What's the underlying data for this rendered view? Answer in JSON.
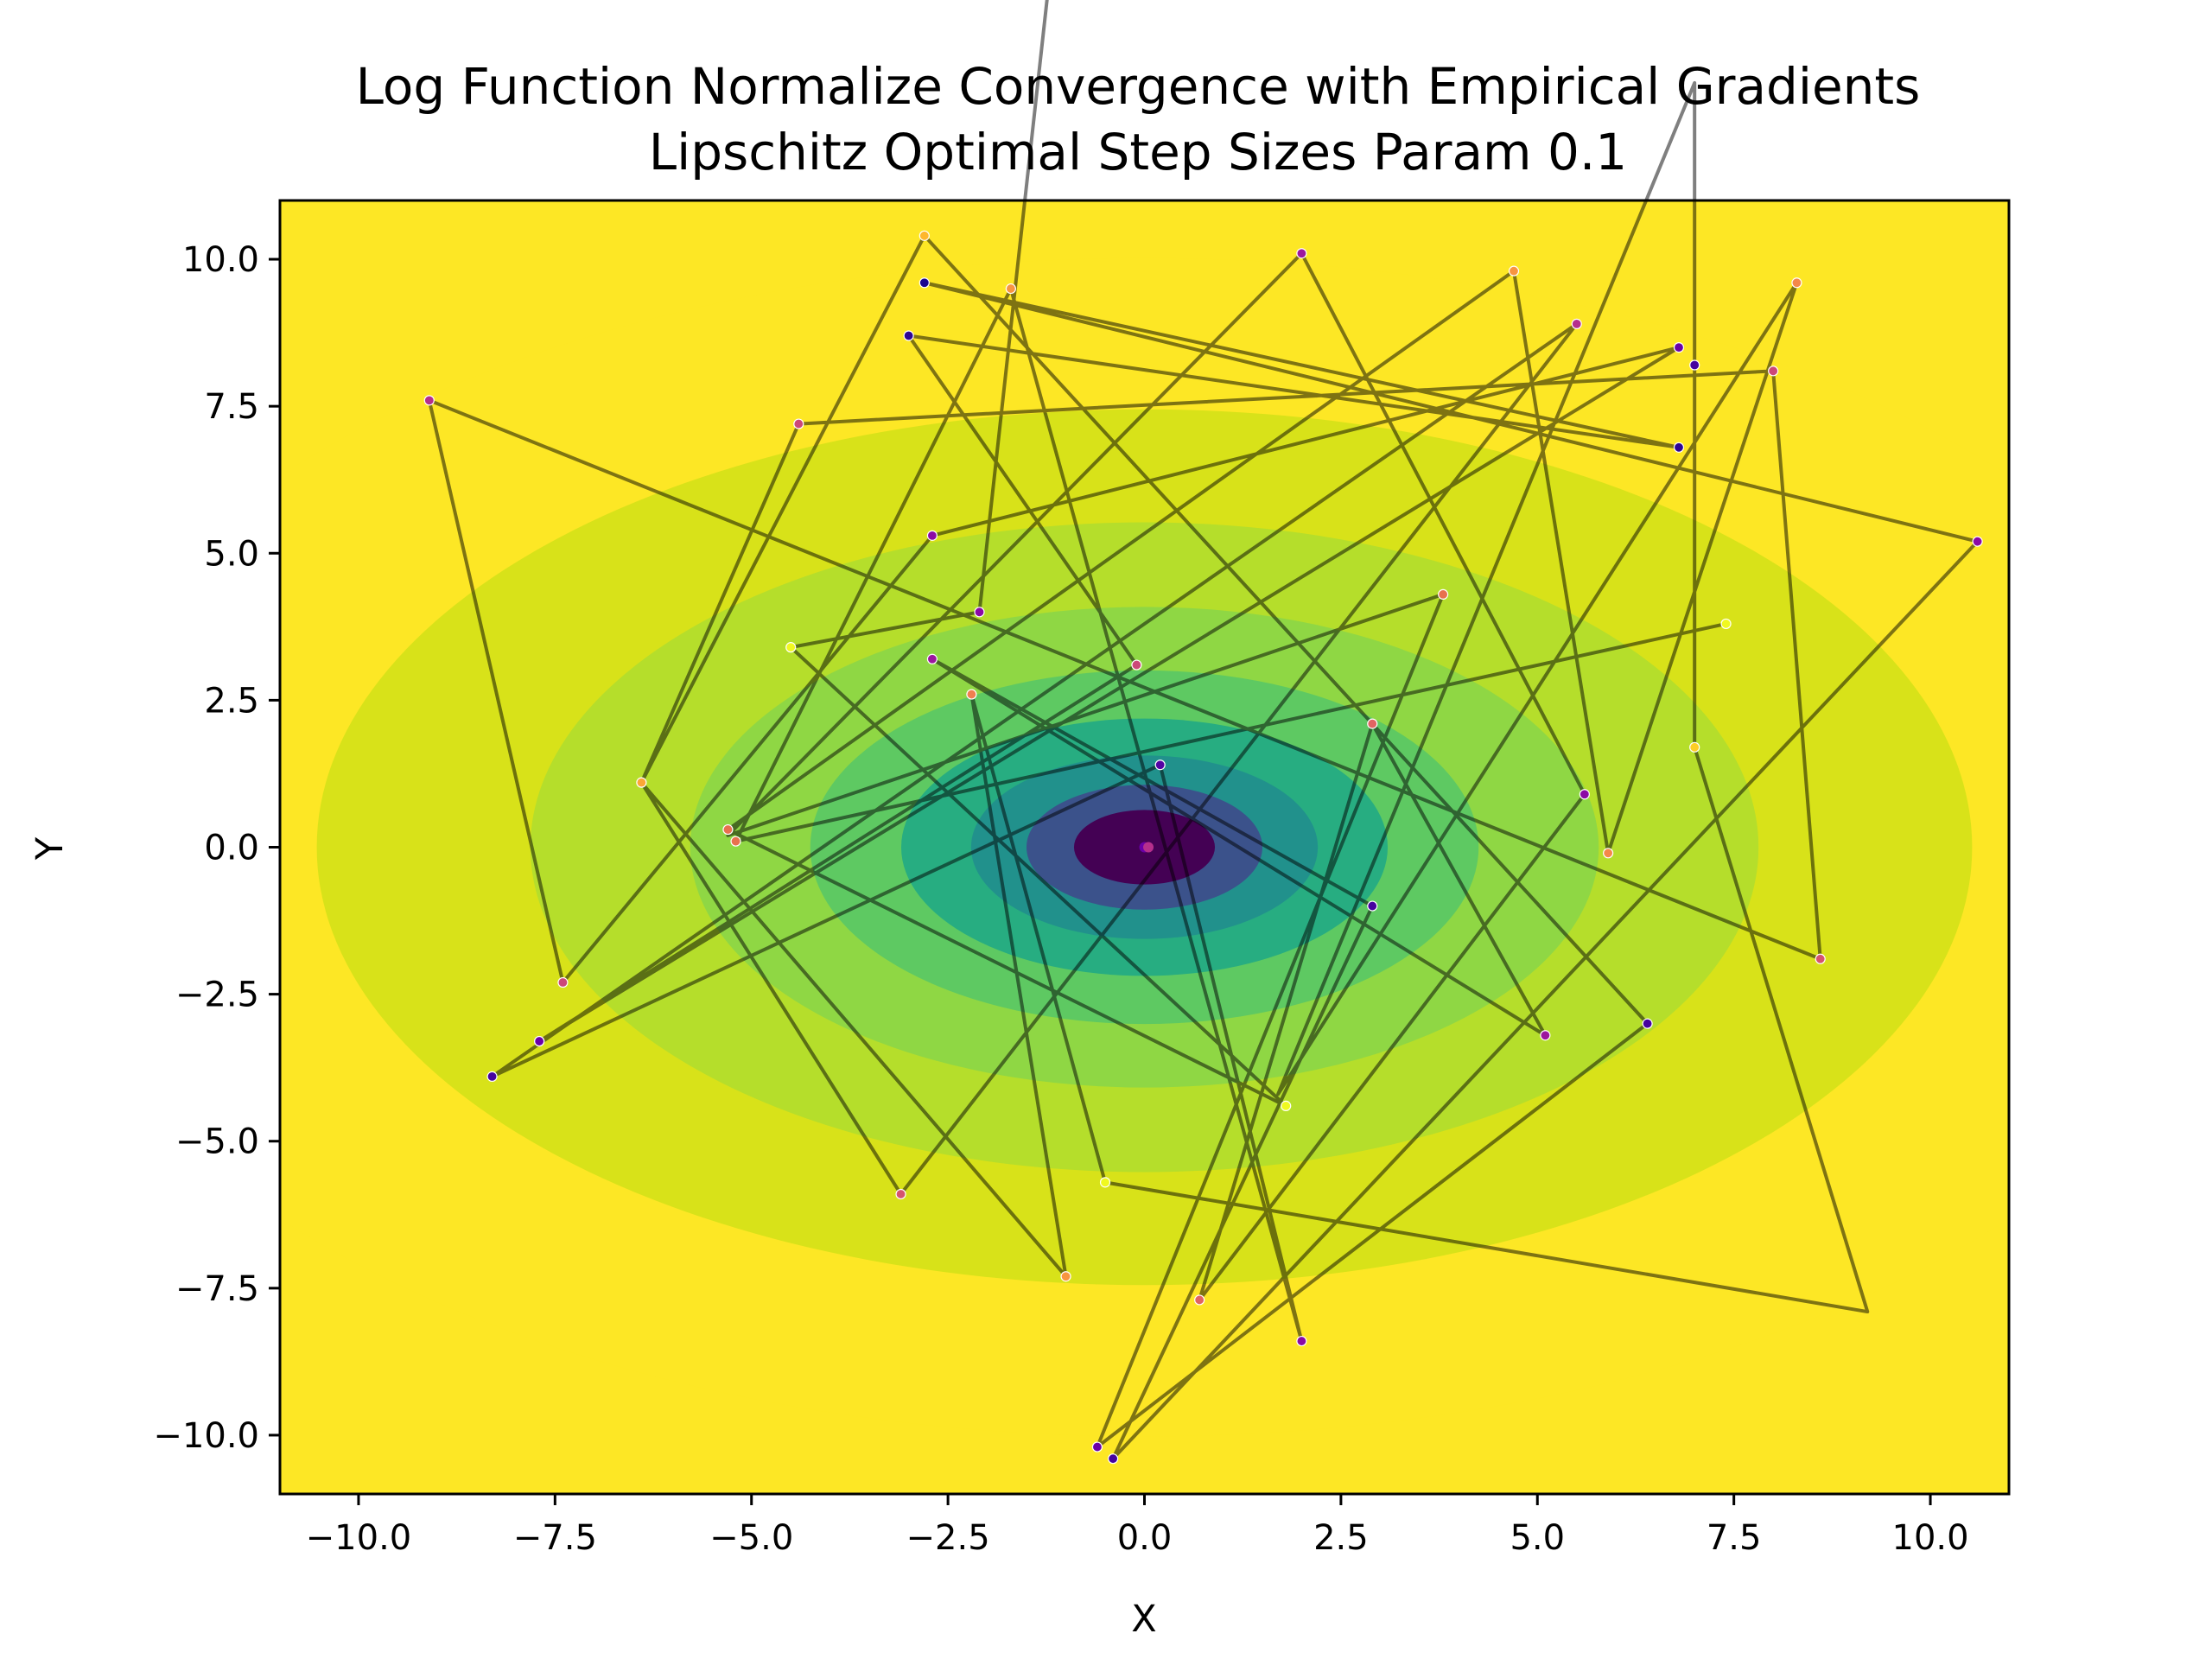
{
  "chart_data": {
    "type": "line",
    "title_lines": [
      "Log Function Normalize Convergence with Empirical Gradients",
      "Lipschitz Optimal Step Sizes Param 0.1"
    ],
    "xlabel": "X",
    "ylabel": "Y",
    "xlim": [
      -11,
      11
    ],
    "ylim": [
      -11,
      11
    ],
    "x_ticks": [
      {
        "value": -10.0,
        "label": "−10.0"
      },
      {
        "value": -7.5,
        "label": "−7.5"
      },
      {
        "value": -5.0,
        "label": "−5.0"
      },
      {
        "value": -2.5,
        "label": "−2.5"
      },
      {
        "value": 0.0,
        "label": "0.0"
      },
      {
        "value": 2.5,
        "label": "2.5"
      },
      {
        "value": 5.0,
        "label": "5.0"
      },
      {
        "value": 7.5,
        "label": "7.5"
      },
      {
        "value": 10.0,
        "label": "10.0"
      }
    ],
    "y_ticks": [
      {
        "value": 10.0,
        "label": "10.0"
      },
      {
        "value": 7.5,
        "label": "7.5"
      },
      {
        "value": 5.0,
        "label": "5.0"
      },
      {
        "value": 2.5,
        "label": "2.5"
      },
      {
        "value": 0.0,
        "label": "0.0"
      },
      {
        "value": -2.5,
        "label": "−2.5"
      },
      {
        "value": -5.0,
        "label": "−5.0"
      },
      {
        "value": -7.5,
        "label": "−7.5"
      },
      {
        "value": -10.0,
        "label": "−10.0"
      }
    ],
    "contour": {
      "function": "log(1 + x^2 + 2*y^2)",
      "center": [
        0,
        0
      ],
      "levels": 10,
      "colormap": [
        "#440154",
        "#3b528b",
        "#21918c",
        "#27ad81",
        "#5ec962",
        "#8fd744",
        "#b5de2b",
        "#d8e219",
        "#fde725"
      ]
    },
    "grid": false,
    "legend": "none",
    "line_color": "#000000",
    "line_alpha": 0.5,
    "path": [
      [
        -0.2,
        27.0
      ],
      [
        -2.1,
        4.0
      ],
      [
        -4.5,
        3.4
      ],
      [
        1.8,
        -4.4
      ],
      [
        -5.3,
        0.3
      ],
      [
        4.7,
        9.8
      ],
      [
        5.9,
        -0.1
      ],
      [
        8.3,
        9.6
      ],
      [
        1.7,
        -4.2
      ],
      [
        7.0,
        13.0
      ],
      [
        7.0,
        1.7
      ],
      [
        9.2,
        -7.9
      ],
      [
        -0.5,
        -5.7
      ],
      [
        -2.2,
        2.6
      ],
      [
        -1.0,
        -7.3
      ],
      [
        -6.4,
        1.1
      ],
      [
        -4.4,
        7.2
      ],
      [
        8.0,
        8.1
      ],
      [
        8.6,
        -1.9
      ],
      [
        -9.1,
        7.6
      ],
      [
        -7.4,
        -2.3
      ],
      [
        -2.7,
        5.3
      ],
      [
        6.8,
        8.5
      ],
      [
        -7.7,
        -3.3
      ],
      [
        -0.1,
        3.1
      ],
      [
        -3.0,
        8.7
      ],
      [
        6.8,
        6.8
      ],
      [
        -2.8,
        9.6
      ],
      [
        10.6,
        5.2
      ],
      [
        -0.4,
        -10.4
      ],
      [
        2.9,
        -1.0
      ],
      [
        -2.7,
        3.2
      ],
      [
        5.1,
        -3.2
      ],
      [
        2.9,
        2.1
      ],
      [
        0.7,
        -7.7
      ],
      [
        5.6,
        0.9
      ],
      [
        2.0,
        10.1
      ],
      [
        -5.3,
        0.2
      ],
      [
        3.8,
        4.3
      ],
      [
        -0.6,
        -10.2
      ],
      [
        6.4,
        -3.0
      ],
      [
        -2.8,
        10.4
      ],
      [
        -6.4,
        1.1
      ],
      [
        -3.1,
        -5.9
      ],
      [
        5.5,
        8.9
      ],
      [
        -8.3,
        -3.9
      ],
      [
        0.2,
        1.4
      ],
      [
        2.0,
        -8.4
      ],
      [
        -1.7,
        9.5
      ],
      [
        -5.2,
        0.1
      ],
      [
        7.4,
        3.8
      ]
    ],
    "start_points": [
      {
        "x": 10.6,
        "y": 5.2,
        "c": "#8b0aa5"
      },
      {
        "x": 7.0,
        "y": 8.2,
        "c": "#46039f"
      },
      {
        "x": 6.8,
        "y": 8.5,
        "c": "#6a00a8"
      },
      {
        "x": 6.8,
        "y": 6.8,
        "c": "#2d0594"
      },
      {
        "x": -3.0,
        "y": 8.7,
        "c": "#2d0594"
      },
      {
        "x": -2.8,
        "y": 9.6,
        "c": "#1a0590"
      },
      {
        "x": -8.3,
        "y": -3.9,
        "c": "#46039f"
      },
      {
        "x": -7.7,
        "y": -3.3,
        "c": "#5302a3"
      },
      {
        "x": 2.9,
        "y": -1.0,
        "c": "#46039f"
      },
      {
        "x": 6.4,
        "y": -3.0,
        "c": "#46039f"
      },
      {
        "x": 0.2,
        "y": 1.4,
        "c": "#5302a3"
      },
      {
        "x": -0.4,
        "y": -10.4,
        "c": "#46039f"
      },
      {
        "x": -0.6,
        "y": -10.2,
        "c": "#6a00a8"
      },
      {
        "x": -2.1,
        "y": 4.0,
        "c": "#8b0aa5"
      },
      {
        "x": 5.6,
        "y": 0.9,
        "c": "#8b0aa5"
      },
      {
        "x": 2.0,
        "y": -8.4,
        "c": "#8b0aa5"
      },
      {
        "x": 2.0,
        "y": 10.1,
        "c": "#9c179e"
      },
      {
        "x": -2.7,
        "y": 5.3,
        "c": "#8b0aa5"
      },
      {
        "x": -7.7,
        "y": -3.3,
        "c": "#6a00a8"
      },
      {
        "x": -2.7,
        "y": 3.2,
        "c": "#9c179e"
      },
      {
        "x": 5.1,
        "y": -3.2,
        "c": "#9c179e"
      },
      {
        "x": -9.1,
        "y": 7.6,
        "c": "#b52f8c"
      },
      {
        "x": 5.5,
        "y": 8.9,
        "c": "#b52f8c"
      },
      {
        "x": -0.1,
        "y": 3.1,
        "c": "#cc4778"
      },
      {
        "x": 8.0,
        "y": 8.1,
        "c": "#cc4778"
      },
      {
        "x": -7.4,
        "y": -2.3,
        "c": "#cc4778"
      },
      {
        "x": -4.4,
        "y": 7.2,
        "c": "#cc4778"
      },
      {
        "x": 8.6,
        "y": -1.9,
        "c": "#d5546e"
      },
      {
        "x": -3.1,
        "y": -5.9,
        "c": "#d5546e"
      },
      {
        "x": 2.9,
        "y": 2.1,
        "c": "#e16462"
      },
      {
        "x": 0.7,
        "y": -7.7,
        "c": "#e16462"
      },
      {
        "x": 3.8,
        "y": 4.3,
        "c": "#e8704e"
      },
      {
        "x": -5.3,
        "y": 0.3,
        "c": "#e8704e"
      },
      {
        "x": -5.2,
        "y": 0.1,
        "c": "#e8704e"
      },
      {
        "x": -2.2,
        "y": 2.6,
        "c": "#f07f4f"
      },
      {
        "x": 5.9,
        "y": -0.1,
        "c": "#f48849"
      },
      {
        "x": 8.3,
        "y": 9.6,
        "c": "#f48849"
      },
      {
        "x": 4.7,
        "y": 9.8,
        "c": "#f89540"
      },
      {
        "x": -1.7,
        "y": 9.5,
        "c": "#f89540"
      },
      {
        "x": -1.0,
        "y": -7.3,
        "c": "#f89540"
      },
      {
        "x": -6.4,
        "y": 1.1,
        "c": "#fca636"
      },
      {
        "x": -2.8,
        "y": 10.4,
        "c": "#feb72d"
      },
      {
        "x": 7.0,
        "y": 1.7,
        "c": "#fcce25"
      },
      {
        "x": -4.5,
        "y": 3.4,
        "c": "#f0f921"
      },
      {
        "x": 7.4,
        "y": 3.8,
        "c": "#f0f921"
      },
      {
        "x": 1.8,
        "y": -4.4,
        "c": "#f0f921"
      },
      {
        "x": -0.5,
        "y": -5.7,
        "c": "#f0f921"
      }
    ],
    "center_points": [
      {
        "x": 0.0,
        "y": 0.0,
        "c": "#6a00a8"
      },
      {
        "x": 0.05,
        "y": 0.0,
        "c": "#b52f8c"
      }
    ]
  }
}
